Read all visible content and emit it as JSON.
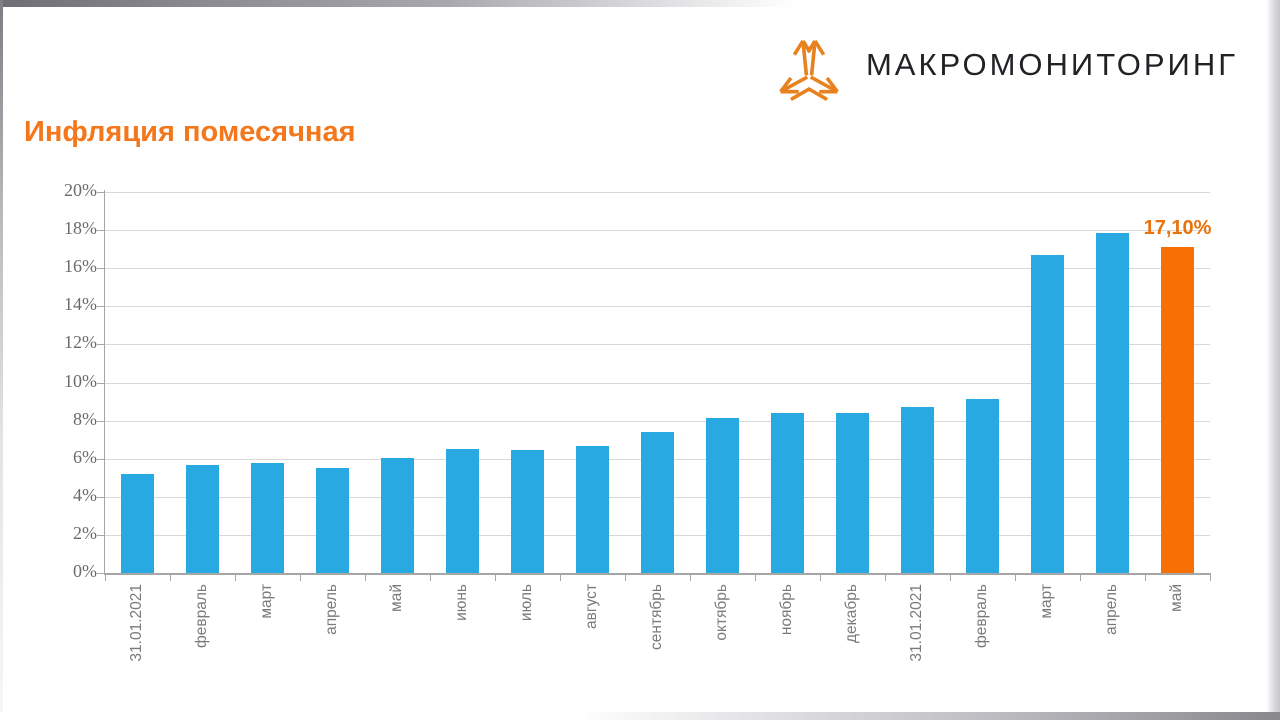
{
  "logo": {
    "text": "МАКРОМОНИТОРИНГ",
    "icon": "triangle-arrows-logo",
    "icon_color": "#E8821E",
    "text_color": "#222226"
  },
  "title": {
    "text": "Инфляция помесячная",
    "color": "#F4771B"
  },
  "chart_data": {
    "type": "bar",
    "title": "Инфляция помесячная",
    "categories": [
      "31.01.2021",
      "февраль",
      "март",
      "апрель",
      "май",
      "июнь",
      "июль",
      "август",
      "сентябрь",
      "октябрь",
      "ноябрь",
      "декабрь",
      "31.01.2021",
      "февраль",
      "март",
      "апрель",
      "май"
    ],
    "values": [
      5.19,
      5.67,
      5.79,
      5.53,
      6.02,
      6.51,
      6.46,
      6.68,
      7.41,
      8.14,
      8.4,
      8.39,
      8.73,
      9.16,
      16.7,
      17.83,
      17.1
    ],
    "xlabel": "",
    "ylabel": "",
    "ylim": [
      0,
      20
    ],
    "y_tick_step": 2,
    "y_tick_labels": [
      "0%",
      "2%",
      "4%",
      "6%",
      "8%",
      "10%",
      "12%",
      "14%",
      "16%",
      "18%",
      "20%"
    ],
    "grid": true,
    "legend": "none",
    "bar_color": "#29A9E1",
    "highlight_index": 16,
    "highlight_color": "#F86F06",
    "data_label": {
      "index": 16,
      "text": "17,10%",
      "color": "#E8730B"
    }
  }
}
